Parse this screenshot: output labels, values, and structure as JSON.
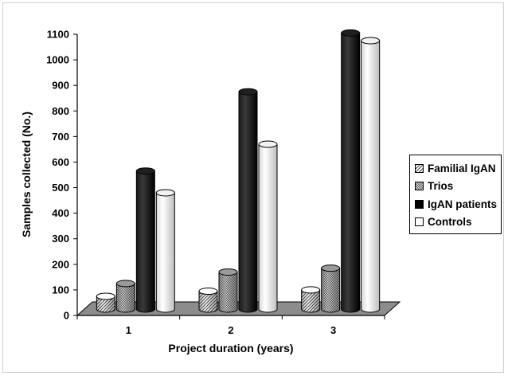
{
  "chart_data": {
    "type": "bar",
    "title": "",
    "xlabel": "Project duration (years)",
    "ylabel": "Samples collected (No.)",
    "categories": [
      "1",
      "2",
      "3"
    ],
    "ylim": [
      0,
      1100
    ],
    "yticks": [
      "0",
      "100",
      "200",
      "300",
      "400",
      "500",
      "600",
      "700",
      "800",
      "900",
      "1000",
      "1100"
    ],
    "series": [
      {
        "name": "Familial IgAN",
        "values": [
          50,
          70,
          75
        ],
        "pattern": "diagonal-hatch"
      },
      {
        "name": "Trios",
        "values": [
          100,
          145,
          160
        ],
        "pattern": "checker"
      },
      {
        "name": "IgAN patients",
        "values": [
          540,
          850,
          1080
        ],
        "color": "#000000"
      },
      {
        "name": "Controls",
        "values": [
          455,
          645,
          1050
        ],
        "color": "#ffffff"
      }
    ],
    "legend_position": "right",
    "grid": false,
    "style": "3d-cylinder"
  }
}
